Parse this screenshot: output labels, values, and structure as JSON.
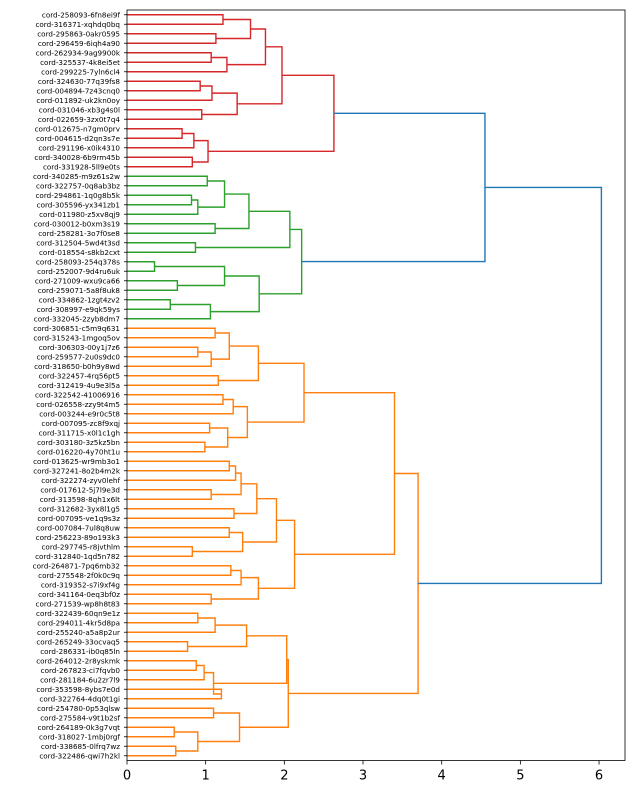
{
  "chart_data": {
    "type": "dendrogram",
    "orientation": "leaves-left",
    "xlim": [
      0,
      6.33
    ],
    "xticks": [
      0,
      1,
      2,
      3,
      4,
      5,
      6
    ],
    "title": "",
    "xlabel": "",
    "ylabel": "",
    "grid": false,
    "colors": {
      "above_threshold": "#1f77b4",
      "cluster1": "#d62728",
      "cluster2": "#2ca02c",
      "cluster3": "#ff7f0e"
    },
    "labels": [
      "cord-258093-6fn8ei9f",
      "cord-316371-xqhdq0bq",
      "cord-295863-0akr0595",
      "cord-296459-6iqh4a90",
      "cord-262934-9ag9900k",
      "cord-325537-4k8ei5et",
      "cord-299225-7yln6cl4",
      "cord-324630-77q39fs8",
      "cord-004894-7z43cnq0",
      "cord-011892-uk2kn0oy",
      "cord-031046-xb3g4s0l",
      "cord-022659-3zx0t7q4",
      "cord-012675-n7gm0prv",
      "cord-004615-d2qn3s7e",
      "cord-291196-x0ik4310",
      "cord-340028-6b9rm45b",
      "cord-331928-5ll9e0ts",
      "cord-340285-m9z61s2w",
      "cord-322757-0q8ab3bz",
      "cord-294861-1q0g8b5k",
      "cord-305596-yx341zb1",
      "cord-011980-z5xv8qj9",
      "cord-030012-b0xm3s19",
      "cord-258281-3o7f0se8",
      "cord-312504-5wd4t3sd",
      "cord-018554-s8kb2cxt",
      "cord-258093-254q378s",
      "cord-252007-9d4ru6uk",
      "cord-271009-wxu9ca66",
      "cord-259071-5a8f8uk8",
      "cord-334862-1zgt4zv2",
      "cord-308997-e9qk59ys",
      "cord-332045-2zyb8dm7",
      "cord-306851-c5m9q631",
      "cord-315243-1mgoq5ov",
      "cord-306303-00y1j7z6",
      "cord-259577-2u0s9dc0",
      "cord-318650-b0h9y8wd",
      "cord-322457-4rq56pt5",
      "cord-312419-4u9e3l5a",
      "cord-322542-41006916",
      "cord-026558-zzy9t4m5",
      "cord-003244-e9r0c5t8",
      "cord-007095-zc8f9xqj",
      "cord-311715-x0l1c1gh",
      "cord-303180-3z5kz5bn",
      "cord-016220-4y70ht1u",
      "cord-013625-wr9mb3o1",
      "cord-327241-8o2b4m2k",
      "cord-322274-zyv0lehf",
      "cord-017612-5j7l9e3d",
      "cord-313598-8qh1x6lt",
      "cord-312682-3yx8l1g5",
      "cord-007095-ve1q9s3z",
      "cord-007084-7ul8q8uw",
      "cord-256223-89o193k3",
      "cord-297745-r8jvthlm",
      "cord-312840-1qd5n782",
      "cord-264871-7pq6mb32",
      "cord-275548-2f0k0c9q",
      "cord-319352-s7i9xf4g",
      "cord-341164-0eq3bf0z",
      "cord-271539-wp8h8t83",
      "cord-322439-60qn9e1z",
      "cord-294011-4kr5d8pa",
      "cord-255240-a5a8p2ur",
      "cord-265249-33ocvaq5",
      "cord-286331-ib0q85ln",
      "cord-264012-2r8yskmk",
      "cord-267823-ci7fqvb0",
      "cord-281184-6u2zr7l9",
      "cord-353598-8ybs7e0d",
      "cord-322764-4dq0t1gi",
      "cord-254780-0p53qlsw",
      "cord-275584-v9t1b2sf",
      "cord-264189-0k3g7vqt",
      "cord-318027-1mbj0rgf",
      "cord-338685-0lfrq7wz",
      "cord-322486-qwi7h2kl"
    ],
    "tree": [
      6.03,
      [
        4.55,
        {
          "color": "cluster1",
          "tree": [
            2.63,
            [
              1.97,
              [
                1.76,
                [
                  1.57,
                  [
                    1.22,
                    0,
                    1
                  ],
                  [
                    1.13,
                    2,
                    3
                  ]
                ],
                [
                  1.27,
                  [
                    1.07,
                    4,
                    5
                  ],
                  6
                ]
              ],
              [
                1.4,
                [
                  1.08,
                  [
                    0.93,
                    7,
                    8
                  ],
                  9
                ],
                [
                  0.95,
                  10,
                  11
                ]
              ]
            ],
            [
              1.03,
              [
                0.85,
                [
                  0.7,
                  12,
                  13
                ],
                14
              ],
              [
                0.83,
                15,
                16
              ]
            ]
          ]
        },
        {
          "color": "cluster2",
          "tree": [
            2.22,
            [
              2.07,
              [
                1.55,
                [
                  1.24,
                  [
                    1.02,
                    17,
                    18
                  ],
                  [
                    0.9,
                    [
                      0.82,
                      19,
                      20
                    ],
                    21
                  ]
                ],
                [
                  1.12,
                  22,
                  23
                ]
              ],
              [
                0.87,
                24,
                25
              ]
            ],
            [
              1.68,
              [
                1.24,
                [
                  0.35,
                  26,
                  27
                ],
                [
                  0.64,
                  28,
                  29
                ]
              ],
              [
                1.06,
                [
                  0.55,
                  30,
                  31
                ],
                32
              ]
            ]
          ]
        }
      ],
      {
        "color": "cluster3",
        "tree": [
          3.7,
          [
            3.4,
            [
              2.25,
              [
                1.67,
                [
                  1.3,
                  [
                    1.12,
                    33,
                    34
                  ],
                  [
                    1.07,
                    [
                      0.9,
                      35,
                      36
                    ],
                    37
                  ]
                ],
                [
                  1.16,
                  38,
                  39
                ]
              ],
              [
                1.53,
                [
                  1.35,
                  [
                    1.22,
                    40,
                    41
                  ],
                  42
                ],
                [
                  1.28,
                  [
                    1.05,
                    43,
                    44
                  ],
                  [
                    0.99,
                    45,
                    46
                  ]
                ]
              ]
            ],
            [
              2.13,
              [
                1.9,
                [
                  1.65,
                  [
                    1.45,
                    [
                      1.38,
                      [
                        1.3,
                        47,
                        48
                      ],
                      49
                    ],
                    [
                      1.07,
                      50,
                      51
                    ]
                  ],
                  [
                    1.36,
                    52,
                    53
                  ]
                ],
                [
                  1.47,
                  [
                    1.3,
                    54,
                    55
                  ],
                  [
                    0.83,
                    56,
                    57
                  ]
                ]
              ],
              [
                1.67,
                [
                  1.45,
                  [
                    1.32,
                    58,
                    59
                  ],
                  60
                ],
                [
                  1.07,
                  61,
                  62
                ]
              ]
            ]
          ],
          [
            2.05,
            [
              2.03,
              [
                1.52,
                [
                  1.12,
                  [
                    0.9,
                    63,
                    64
                  ],
                  65
                ],
                [
                  0.77,
                  66,
                  67
                ]
              ],
              [
                1.1,
                [
                  0.98,
                  [
                    0.88,
                    68,
                    69
                  ],
                  70
                ],
                [
                  1.2,
                  71,
                  72
                ]
              ]
            ],
            [
              1.43,
              [
                1.1,
                73,
                74
              ],
              [
                0.9,
                [
                  0.6,
                  75,
                  76
                ],
                [
                  0.62,
                  77,
                  78
                ]
              ]
            ]
          ]
        ]
      }
    ]
  }
}
